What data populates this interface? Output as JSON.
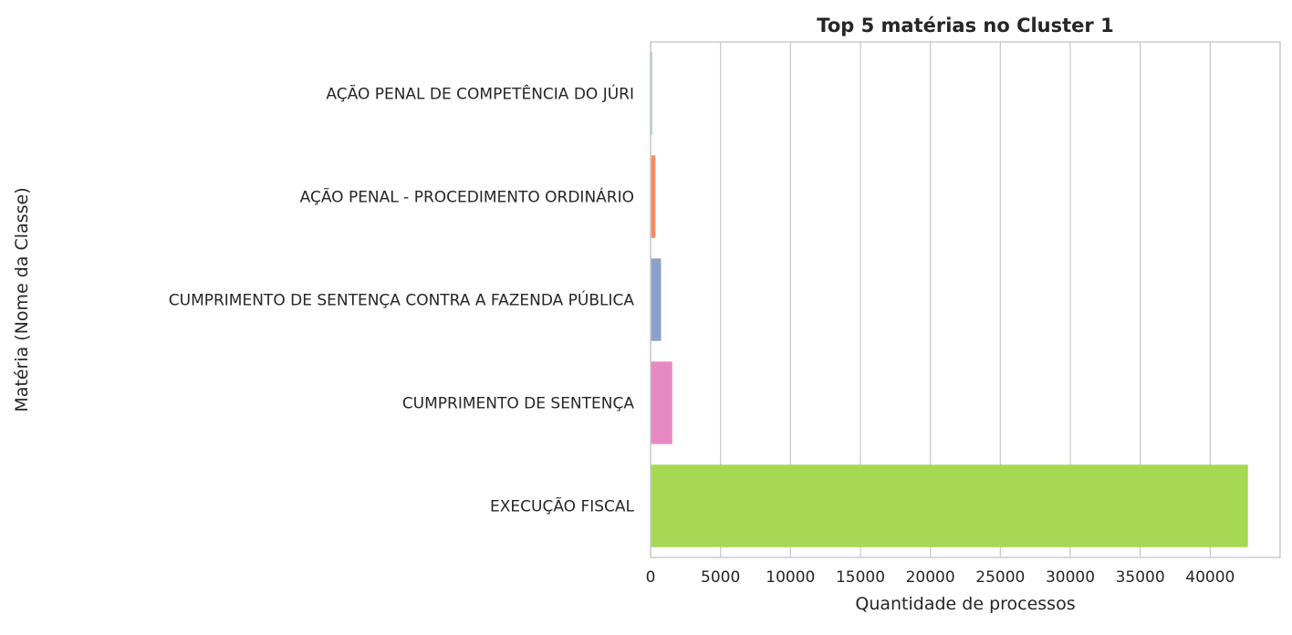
{
  "chart_data": {
    "type": "bar",
    "orientation": "horizontal",
    "title": "Top 5 matérias no Cluster 1",
    "xlabel": "Quantidade de processos",
    "ylabel": "Matéria (Nome da Classe)",
    "categories": [
      "AÇÃO PENAL DE COMPETÊNCIA DO JÚRI",
      "AÇÃO PENAL - PROCEDIMENTO ORDINÁRIO",
      "CUMPRIMENTO DE SENTENÇA CONTRA A FAZENDA PÚBLICA",
      "CUMPRIMENTO DE SENTENÇA",
      "EXECUÇÃO FISCAL"
    ],
    "values": [
      100,
      350,
      750,
      1550,
      42700
    ],
    "colors": [
      "#66c2a5",
      "#fc8d62",
      "#8da0cb",
      "#e78ac3",
      "#a6d854"
    ],
    "xlim": [
      0,
      45000
    ],
    "xticks": [
      0,
      5000,
      10000,
      15000,
      20000,
      25000,
      30000,
      35000,
      40000
    ],
    "grid": "vertical",
    "legend": "none"
  }
}
